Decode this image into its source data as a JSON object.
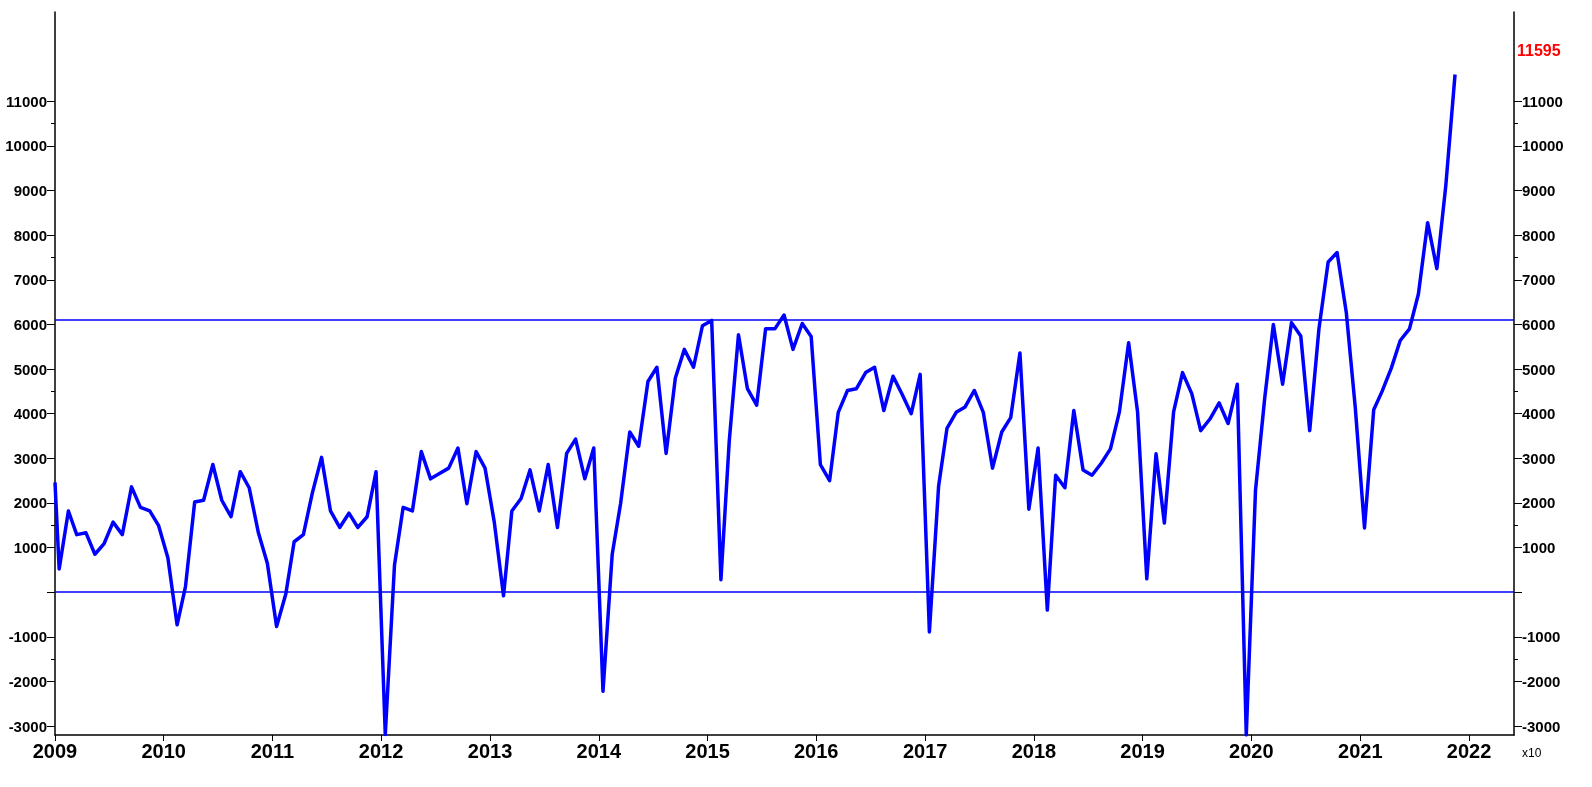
{
  "chart_data": {
    "type": "line",
    "x": [
      "2009-01-01",
      "2009-01-15",
      "2009-02-15",
      "2009-03-15",
      "2009-04-15",
      "2009-05-15",
      "2009-06-15",
      "2009-07-15",
      "2009-08-15",
      "2009-09-15",
      "2009-10-15",
      "2009-11-15",
      "2009-12-15",
      "2010-01-15",
      "2010-02-15",
      "2010-03-15",
      "2010-04-15",
      "2010-05-15",
      "2010-06-15",
      "2010-07-15",
      "2010-08-15",
      "2010-09-15",
      "2010-10-15",
      "2010-11-15",
      "2010-12-15",
      "2011-01-15",
      "2011-02-15",
      "2011-03-15",
      "2011-04-15",
      "2011-05-15",
      "2011-06-15",
      "2011-07-15",
      "2011-08-15",
      "2011-09-15",
      "2011-10-15",
      "2011-11-15",
      "2011-12-15",
      "2012-01-15",
      "2012-02-15",
      "2012-03-15",
      "2012-04-15",
      "2012-05-15",
      "2012-06-15",
      "2012-07-15",
      "2012-08-15",
      "2012-09-15",
      "2012-10-15",
      "2012-11-15",
      "2012-12-15",
      "2013-01-15",
      "2013-02-15",
      "2013-03-15",
      "2013-04-15",
      "2013-05-15",
      "2013-06-15",
      "2013-07-15",
      "2013-08-15",
      "2013-09-15",
      "2013-10-15",
      "2013-11-15",
      "2013-12-15",
      "2014-01-15",
      "2014-02-15",
      "2014-03-15",
      "2014-04-15",
      "2014-05-15",
      "2014-06-15",
      "2014-07-15",
      "2014-08-15",
      "2014-09-15",
      "2014-10-15",
      "2014-11-15",
      "2014-12-15",
      "2015-01-15",
      "2015-02-15",
      "2015-03-15",
      "2015-04-15",
      "2015-05-15",
      "2015-06-15",
      "2015-07-15",
      "2015-08-15",
      "2015-09-15",
      "2015-10-15",
      "2015-11-15",
      "2015-12-15",
      "2016-01-15",
      "2016-02-15",
      "2016-03-15",
      "2016-04-15",
      "2016-05-15",
      "2016-06-15",
      "2016-07-15",
      "2016-08-15",
      "2016-09-15",
      "2016-10-15",
      "2016-11-15",
      "2016-12-15",
      "2017-01-15",
      "2017-02-15",
      "2017-03-15",
      "2017-04-15",
      "2017-05-15",
      "2017-06-15",
      "2017-07-15",
      "2017-08-15",
      "2017-09-15",
      "2017-10-15",
      "2017-11-15",
      "2017-12-15",
      "2018-01-15",
      "2018-02-15",
      "2018-03-15",
      "2018-04-15",
      "2018-05-15",
      "2018-06-15",
      "2018-07-15",
      "2018-08-15",
      "2018-09-15",
      "2018-10-15",
      "2018-11-15",
      "2018-12-15",
      "2019-01-15",
      "2019-02-15",
      "2019-03-15",
      "2019-04-15",
      "2019-05-15",
      "2019-06-15",
      "2019-07-15",
      "2019-08-15",
      "2019-09-15",
      "2019-10-15",
      "2019-11-15",
      "2019-12-15",
      "2020-01-15",
      "2020-02-15",
      "2020-03-15",
      "2020-04-15",
      "2020-05-15",
      "2020-06-15",
      "2020-07-15",
      "2020-08-15",
      "2020-09-15",
      "2020-10-15",
      "2020-11-15",
      "2020-12-15",
      "2021-01-15",
      "2021-02-15",
      "2021-03-15",
      "2021-04-15",
      "2021-05-15",
      "2021-06-15",
      "2021-07-15",
      "2021-08-15",
      "2021-09-15",
      "2021-10-15",
      "2021-11-15"
    ],
    "series": [
      {
        "color": "#0000ff",
        "values": [
          2460,
          520,
          1820,
          1290,
          1330,
          850,
          1090,
          1570,
          1290,
          2360,
          1900,
          1820,
          1490,
          770,
          -730,
          120,
          2020,
          2060,
          2860,
          2060,
          1690,
          2700,
          2340,
          1330,
          650,
          -770,
          -40,
          1130,
          1290,
          2220,
          3020,
          1820,
          1450,
          1770,
          1450,
          1690,
          2700,
          -3190,
          610,
          1900,
          1820,
          3150,
          2540,
          2660,
          2780,
          3230,
          1980,
          3150,
          2780,
          1570,
          -80,
          1820,
          2100,
          2740,
          1820,
          2860,
          1450,
          3110,
          3430,
          2540,
          3230,
          -2220,
          850,
          1980,
          3590,
          3270,
          4720,
          5040,
          3110,
          4800,
          5440,
          5040,
          5970,
          6090,
          280,
          3390,
          5770,
          4560,
          4190,
          5900,
          5900,
          6210,
          5440,
          6020,
          5730,
          2860,
          2500,
          4030,
          4520,
          4560,
          4920,
          5040,
          4070,
          4840,
          4440,
          4000,
          4880,
          -890,
          2380,
          3670,
          4030,
          4150,
          4520,
          4030,
          2780,
          3590,
          3910,
          5360,
          1860,
          3230,
          -400,
          2620,
          2340,
          4070,
          2740,
          2620,
          2890,
          3210,
          4040,
          5590,
          4040,
          300,
          3100,
          1550,
          4040,
          4920,
          4450,
          3620,
          3880,
          4240,
          3780,
          4660,
          -3200,
          2280,
          4350,
          6000,
          4660,
          6040,
          5740,
          3620,
          5900,
          7400,
          7610,
          6260,
          4140,
          1440,
          4090,
          4500,
          5020,
          5640,
          5900,
          6680,
          8280,
          7250,
          9110,
          11600
        ]
      }
    ],
    "xlim": [
      "2009-01-01",
      "2022-06-01"
    ],
    "xticks": [
      {
        "value": "2009",
        "label": "2009"
      },
      {
        "value": "2010",
        "label": "2010"
      },
      {
        "value": "2011",
        "label": "2011"
      },
      {
        "value": "2012",
        "label": "2012"
      },
      {
        "value": "2013",
        "label": "2013"
      },
      {
        "value": "2014",
        "label": "2014"
      },
      {
        "value": "2015",
        "label": "2015"
      },
      {
        "value": "2016",
        "label": "2016"
      },
      {
        "value": "2017",
        "label": "2017"
      },
      {
        "value": "2018",
        "label": "2018"
      },
      {
        "value": "2019",
        "label": "2019"
      },
      {
        "value": "2020",
        "label": "2020"
      },
      {
        "value": "2021",
        "label": "2021"
      },
      {
        "value": "2022",
        "label": "2022"
      }
    ],
    "ylim": [
      -3200,
      13000
    ],
    "yticks": [
      -3000,
      -2000,
      -1000,
      {
        "value": 0,
        "label": null
      },
      1000,
      2000,
      3000,
      4000,
      5000,
      6000,
      7000,
      8000,
      9000,
      10000,
      11000
    ],
    "y2lim": [
      -3200,
      13000
    ],
    "y2ticks": [
      -3000,
      -2000,
      -1000,
      {
        "value": 0,
        "label": null
      },
      1000,
      2000,
      3000,
      4000,
      5000,
      6000,
      7000,
      8000,
      9000,
      10000,
      11000
    ],
    "ref_lines": [
      {
        "axis": "y",
        "value": 6100,
        "color": "#0000ff"
      },
      {
        "axis": "y",
        "value": 0,
        "color": "#0000ff"
      }
    ],
    "annotations": [
      "11595",
      "x10"
    ],
    "grid": false,
    "marker": "none",
    "line_style": "solid"
  }
}
